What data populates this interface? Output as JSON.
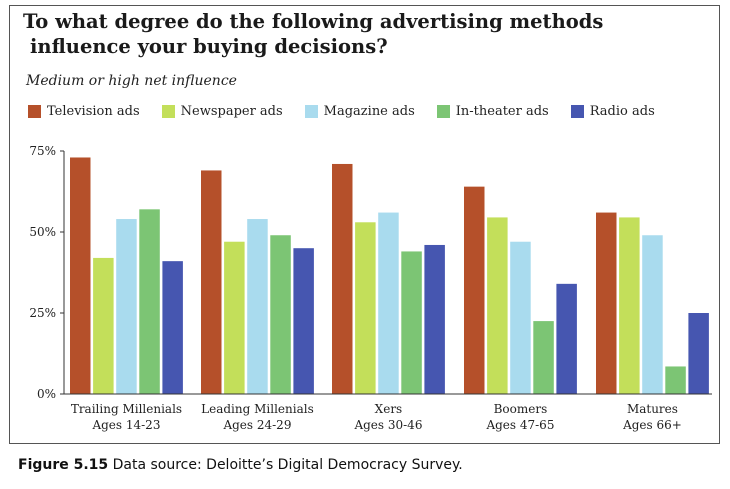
{
  "chart_data": {
    "type": "bar",
    "title_line1": "To what degree do the following advertising methods",
    "title_line2": "influence your buying decisions?",
    "subtitle": "Medium or high net influence",
    "categories": [
      {
        "line1": "Trailing Millenials",
        "line2": "Ages 14-23"
      },
      {
        "line1": "Leading Millenials",
        "line2": "Ages 24-29"
      },
      {
        "line1": "Xers",
        "line2": "Ages 30-46"
      },
      {
        "line1": "Boomers",
        "line2": "Ages 47-65"
      },
      {
        "line1": "Matures",
        "line2": "Ages 66+"
      }
    ],
    "series": [
      {
        "name": "Television ads",
        "color": "#b5502a",
        "values": [
          73,
          69,
          71,
          64,
          56
        ]
      },
      {
        "name": "Newspaper ads",
        "color": "#c3df5a",
        "values": [
          42,
          47,
          53,
          54.5,
          54.5
        ]
      },
      {
        "name": "Magazine ads",
        "color": "#a9dbee",
        "values": [
          54,
          54,
          56,
          47,
          49
        ]
      },
      {
        "name": "In-theater ads",
        "color": "#7cc574",
        "values": [
          57,
          49,
          44,
          22.5,
          8.5
        ]
      },
      {
        "name": "Radio ads",
        "color": "#4656b0",
        "values": [
          41,
          45,
          46,
          34,
          25
        ]
      }
    ],
    "yticks": [
      {
        "value": 0,
        "label": "0%"
      },
      {
        "value": 25,
        "label": "25%"
      },
      {
        "value": 50,
        "label": "50%"
      },
      {
        "value": 75,
        "label": "75%"
      }
    ],
    "ylim": [
      0,
      75
    ],
    "legend_position": "top-left",
    "grid": false
  },
  "caption": {
    "figure_label": "Figure 5.15",
    "text": " Data source: Deloitte’s Digital Democracy Survey."
  }
}
